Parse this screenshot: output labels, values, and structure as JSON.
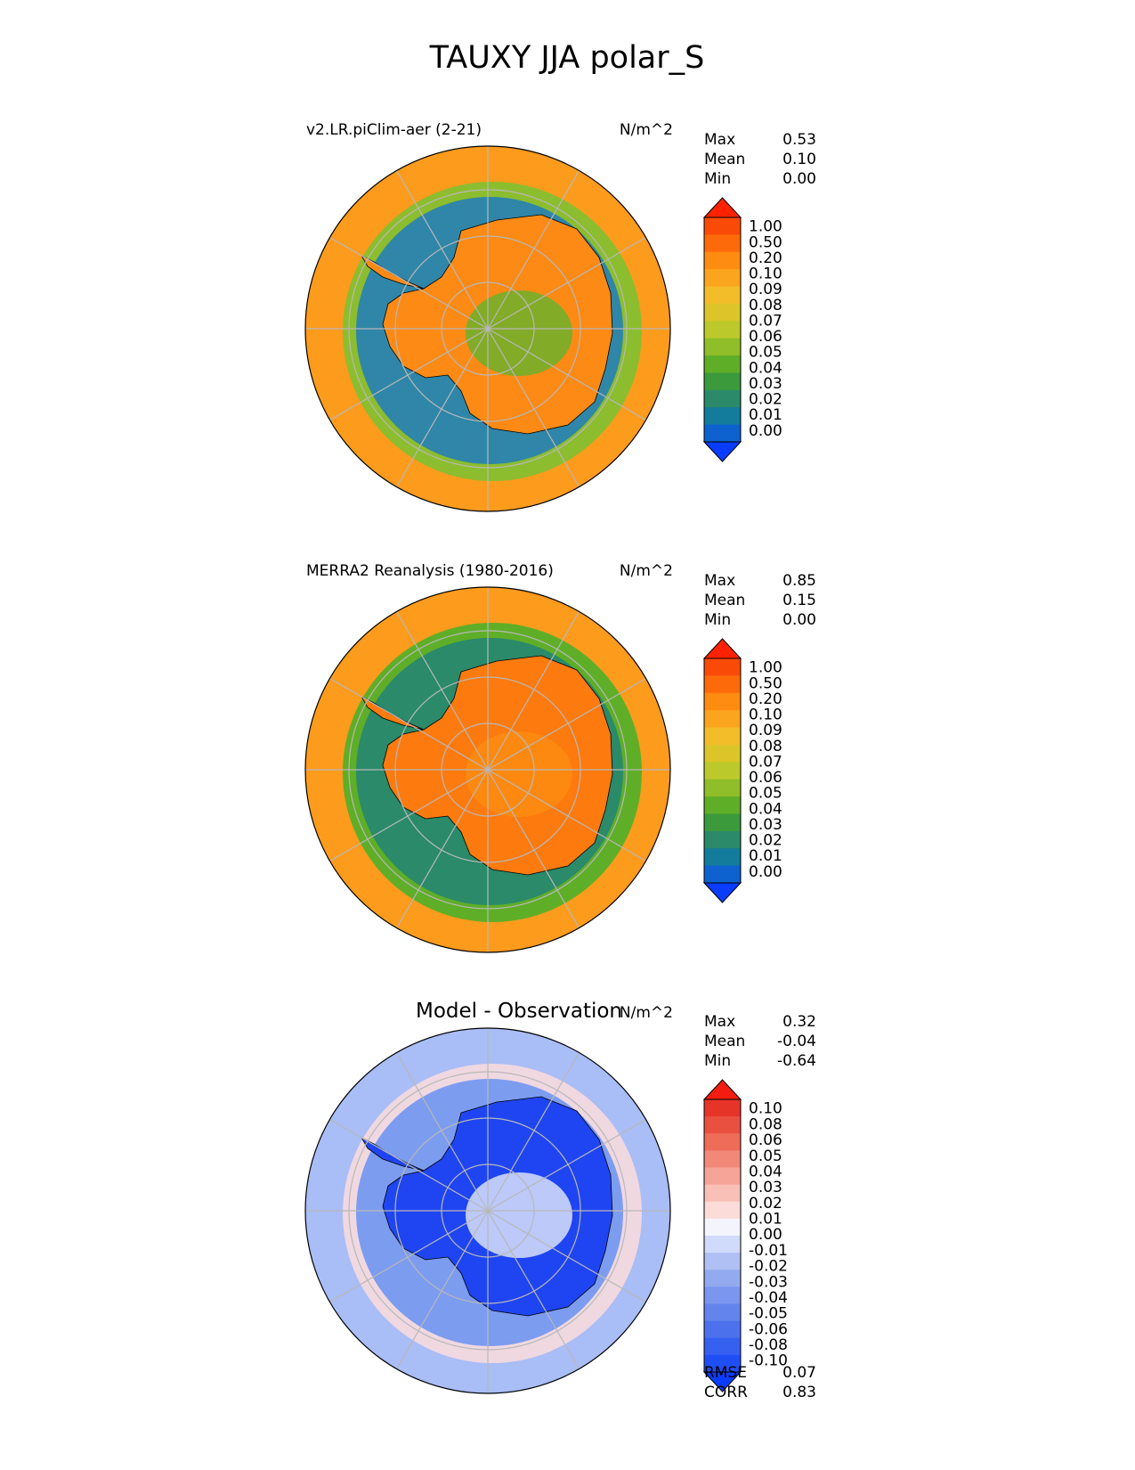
{
  "figure": {
    "title": "TAUXY JJA polar_S"
  },
  "panels": [
    {
      "label": "v2.LR.piClim-aer (2-21)",
      "units": "N/m^2",
      "stats": [
        {
          "name": "Max",
          "value": "0.53"
        },
        {
          "name": "Mean",
          "value": "0.10"
        },
        {
          "name": "Min",
          "value": "0.00"
        }
      ],
      "colorbar": {
        "ticks": [
          "1.00",
          "0.50",
          "0.20",
          "0.10",
          "0.09",
          "0.08",
          "0.07",
          "0.06",
          "0.05",
          "0.04",
          "0.03",
          "0.02",
          "0.01",
          "0.00"
        ],
        "colors": [
          "#0a3cff",
          "#0d62d0",
          "#137b9c",
          "#2a8a6a",
          "#3b9a3b",
          "#5fae28",
          "#8fbe28",
          "#bcc92a",
          "#dcc528",
          "#f2bd28",
          "#fba41e",
          "#fd8c10",
          "#fd6a0a",
          "#fa4a08",
          "#ff2200"
        ]
      },
      "map": {
        "ocean": "#fd9b1d",
        "ring": "#8cbd2e",
        "ring_inner": "#2f86a8",
        "land": "#fd8a14",
        "interior": "#6cb02c"
      }
    },
    {
      "label": "MERRA2 Reanalysis (1980-2016)",
      "units": "N/m^2",
      "stats": [
        {
          "name": "Max",
          "value": "0.85"
        },
        {
          "name": "Mean",
          "value": "0.15"
        },
        {
          "name": "Min",
          "value": "0.00"
        }
      ],
      "colorbar": {
        "ticks": [
          "1.00",
          "0.50",
          "0.20",
          "0.10",
          "0.09",
          "0.08",
          "0.07",
          "0.06",
          "0.05",
          "0.04",
          "0.03",
          "0.02",
          "0.01",
          "0.00"
        ],
        "colors": [
          "#0a3cff",
          "#0d62d0",
          "#137b9c",
          "#2a8a6a",
          "#3b9a3b",
          "#5fae28",
          "#8fbe28",
          "#bcc92a",
          "#dcc528",
          "#f2bd28",
          "#fba41e",
          "#fd8c10",
          "#fd6a0a",
          "#fa4a08",
          "#ff2200"
        ]
      },
      "map": {
        "ocean": "#fd9b1d",
        "ring": "#5fae28",
        "ring_inner": "#2a8a6a",
        "land": "#fd7a0e",
        "interior": "#fd8c10"
      }
    },
    {
      "label": "Model - Observation",
      "units": "N/m^2",
      "stats": [
        {
          "name": "Max",
          "value": "0.32"
        },
        {
          "name": "Mean",
          "value": "-0.04"
        },
        {
          "name": "Min",
          "value": "-0.64"
        }
      ],
      "colorbar": {
        "ticks": [
          "0.10",
          "0.08",
          "0.06",
          "0.05",
          "0.04",
          "0.03",
          "0.02",
          "0.01",
          "0.00",
          "-0.01",
          "-0.02",
          "-0.03",
          "-0.04",
          "-0.05",
          "-0.06",
          "-0.08",
          "-0.10"
        ],
        "colors": [
          "#0a3cff",
          "#1f4ef5",
          "#3560f0",
          "#4b72ec",
          "#6284ec",
          "#7a96ee",
          "#94aaf0",
          "#b0c0f4",
          "#d0dafa",
          "#f4f4fc",
          "#fcdcd8",
          "#f9c0b8",
          "#f6a498",
          "#f28878",
          "#ee6c58",
          "#ea5040",
          "#e63428",
          "#f21c10"
        ]
      },
      "footer_stats": [
        {
          "name": "RMSE",
          "value": "0.07"
        },
        {
          "name": "CORR",
          "value": "0.83"
        }
      ],
      "map": {
        "ocean": "#a9bdf6",
        "ring": "#f0d8e0",
        "ring_inner": "#7c9cf0",
        "land": "#1f45f2",
        "interior": "#d8e0fa"
      }
    }
  ],
  "chart_data": {
    "type": "heatmap",
    "title": "TAUXY JJA polar_S",
    "variable": "TAUXY",
    "season": "JJA",
    "region": "polar_S",
    "panels": [
      {
        "name": "v2.LR.piClim-aer (2-21)",
        "units": "N/m^2",
        "max": 0.53,
        "mean": 0.1,
        "min": 0.0,
        "levels": [
          0.0,
          0.01,
          0.02,
          0.03,
          0.04,
          0.05,
          0.06,
          0.07,
          0.08,
          0.09,
          0.1,
          0.2,
          0.5,
          1.0
        ]
      },
      {
        "name": "MERRA2 Reanalysis (1980-2016)",
        "units": "N/m^2",
        "max": 0.85,
        "mean": 0.15,
        "min": 0.0,
        "levels": [
          0.0,
          0.01,
          0.02,
          0.03,
          0.04,
          0.05,
          0.06,
          0.07,
          0.08,
          0.09,
          0.1,
          0.2,
          0.5,
          1.0
        ]
      },
      {
        "name": "Model - Observation",
        "units": "N/m^2",
        "max": 0.32,
        "mean": -0.04,
        "min": -0.64,
        "rmse": 0.07,
        "corr": 0.83,
        "levels": [
          -0.1,
          -0.08,
          -0.06,
          -0.05,
          -0.04,
          -0.03,
          -0.02,
          -0.01,
          0.0,
          0.01,
          0.02,
          0.03,
          0.04,
          0.05,
          0.06,
          0.08,
          0.1
        ]
      }
    ]
  }
}
